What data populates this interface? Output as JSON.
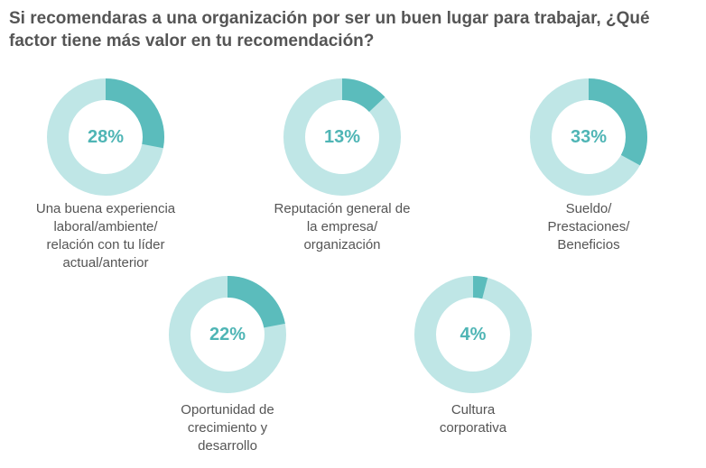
{
  "title_lines": [
    "Si recomendaras a una organización por ser un buen lugar para trabajar, ¿Qué",
    "factor tiene más valor en tu recomendación?"
  ],
  "colors": {
    "value": "#5bbcbc",
    "remainder": "#bfe6e6",
    "percent_text": "#4fb5b5"
  },
  "chart_data": {
    "type": "pie",
    "title": "Si recomendaras a una organización por ser un buen lugar para trabajar, ¿Qué factor tiene más valor en tu recomendación?",
    "items": [
      {
        "value": 28,
        "display": "28%",
        "label_lines": [
          "Una buena experiencia",
          "laboral/ambiente/",
          "relación con tu líder",
          "actual/anterior"
        ]
      },
      {
        "value": 13,
        "display": "13%",
        "label_lines": [
          "Reputación general de",
          "la empresa/",
          "organización"
        ]
      },
      {
        "value": 33,
        "display": "33%",
        "label_lines": [
          "Sueldo/",
          "Prestaciones/",
          "Beneficios"
        ]
      },
      {
        "value": 22,
        "display": "22%",
        "label_lines": [
          "Oportunidad de",
          "crecimiento y",
          "desarrollo"
        ]
      },
      {
        "value": 4,
        "display": "4%",
        "label_lines": [
          "Cultura",
          "corporativa"
        ]
      }
    ]
  }
}
